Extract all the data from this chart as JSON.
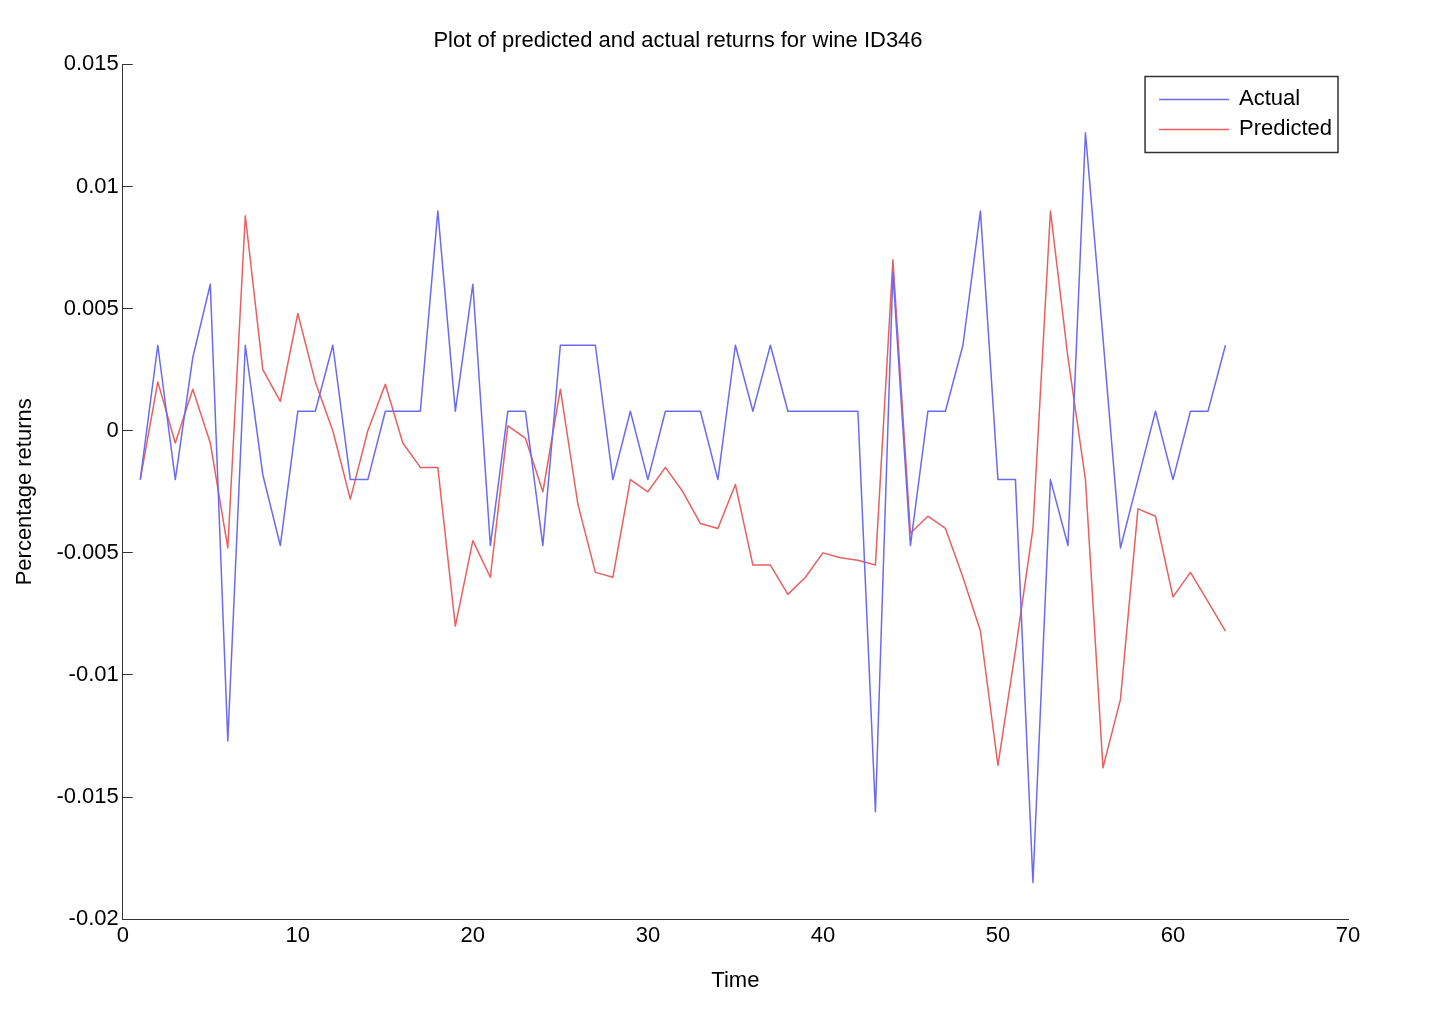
{
  "chart_data": {
    "type": "line",
    "title": "Plot of predicted and actual returns for wine ID346",
    "xlabel": "Time",
    "ylabel": "Percentage returns",
    "x": [
      1,
      2,
      3,
      4,
      5,
      6,
      7,
      8,
      9,
      10,
      11,
      12,
      13,
      14,
      15,
      16,
      17,
      18,
      19,
      20,
      21,
      22,
      23,
      24,
      25,
      26,
      27,
      28,
      29,
      30,
      31,
      32,
      33,
      34,
      35,
      36,
      37,
      38,
      39,
      40,
      41,
      42,
      43,
      44,
      45,
      46,
      47,
      48,
      49,
      50,
      51,
      52,
      53,
      54,
      55,
      56,
      57,
      58,
      59,
      60,
      61,
      62,
      63
    ],
    "series": [
      {
        "name": "Actual",
        "color": "#6b6bf0",
        "values": [
          -0.002,
          0.0035,
          -0.002,
          0.003,
          0.006,
          -0.0127,
          0.0035,
          -0.0018,
          -0.0047,
          0.0008,
          0.0008,
          0.0035,
          -0.002,
          -0.002,
          0.0008,
          0.0008,
          0.0008,
          0.009,
          0.0008,
          0.006,
          -0.0047,
          0.0008,
          0.0008,
          -0.0047,
          0.0035,
          0.0035,
          0.0035,
          -0.002,
          0.0008,
          -0.002,
          0.0008,
          0.0008,
          0.0008,
          -0.002,
          0.0035,
          0.0008,
          0.0035,
          0.0008,
          0.0008,
          0.0008,
          0.0008,
          0.0008,
          -0.0156,
          0.0065,
          -0.0047,
          0.0008,
          0.0008,
          0.0035,
          0.009,
          -0.002,
          -0.002,
          -0.0185,
          -0.002,
          -0.0047,
          0.0122,
          0.0038,
          -0.0048,
          -0.002,
          0.0008,
          -0.002,
          0.0008,
          0.0008,
          0.0035
        ]
      },
      {
        "name": "Predicted",
        "color": "#e86060",
        "values": [
          -0.002,
          0.002,
          -0.0005,
          0.0017,
          -0.0005,
          -0.0048,
          0.0088,
          0.0025,
          0.0012,
          0.0048,
          0.002,
          0.0,
          -0.0028,
          0.0,
          0.0019,
          -0.0005,
          -0.0015,
          -0.0015,
          -0.008,
          -0.0045,
          -0.006,
          0.0002,
          -0.0003,
          -0.0025,
          0.0017,
          -0.003,
          -0.0058,
          -0.006,
          -0.002,
          -0.0025,
          -0.0015,
          -0.0025,
          -0.0038,
          -0.004,
          -0.0022,
          -0.0055,
          -0.0055,
          -0.0067,
          -0.006,
          -0.005,
          -0.0052,
          -0.0053,
          -0.0055,
          0.007,
          -0.0042,
          -0.0035,
          -0.004,
          -0.006,
          -0.0082,
          -0.0137,
          -0.009,
          -0.004,
          0.009,
          0.003,
          -0.002,
          -0.0138,
          -0.011,
          -0.0032,
          -0.0035,
          -0.0068,
          -0.0058,
          -0.007,
          -0.0082
        ]
      }
    ],
    "xlim": [
      0,
      70
    ],
    "xticks": [
      0,
      10,
      20,
      30,
      40,
      50,
      60,
      70
    ],
    "ylim": [
      -0.02,
      0.015
    ],
    "yticks": [
      -0.02,
      -0.015,
      -0.01,
      -0.005,
      0,
      0.005,
      0.01,
      0.015
    ],
    "grid": false,
    "legend": "top right",
    "marker": "none",
    "line_style": "solid"
  }
}
